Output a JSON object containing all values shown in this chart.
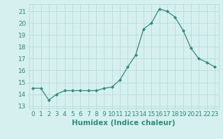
{
  "x": [
    0,
    1,
    2,
    3,
    4,
    5,
    6,
    7,
    8,
    9,
    10,
    11,
    12,
    13,
    14,
    15,
    16,
    17,
    18,
    19,
    20,
    21,
    22,
    23
  ],
  "y": [
    14.5,
    14.5,
    13.5,
    14.0,
    14.3,
    14.3,
    14.3,
    14.3,
    14.3,
    14.5,
    14.6,
    15.2,
    16.3,
    17.3,
    19.5,
    20.0,
    21.2,
    21.0,
    20.5,
    19.4,
    17.9,
    17.0,
    16.7,
    16.3
  ],
  "xlabel": "Humidex (Indice chaleur)",
  "ylim": [
    12.8,
    21.6
  ],
  "xlim": [
    -0.5,
    23.5
  ],
  "yticks": [
    13,
    14,
    15,
    16,
    17,
    18,
    19,
    20,
    21
  ],
  "xticks": [
    0,
    1,
    2,
    3,
    4,
    5,
    6,
    7,
    8,
    9,
    10,
    11,
    12,
    13,
    14,
    15,
    16,
    17,
    18,
    19,
    20,
    21,
    22,
    23
  ],
  "line_color": "#2d8b7a",
  "marker_color": "#2d8b7a",
  "bg_color": "#d6f0ef",
  "grid_color": "#aed8d4",
  "text_color": "#2d8b7a",
  "tick_fontsize": 6.5,
  "xlabel_fontsize": 7.5
}
